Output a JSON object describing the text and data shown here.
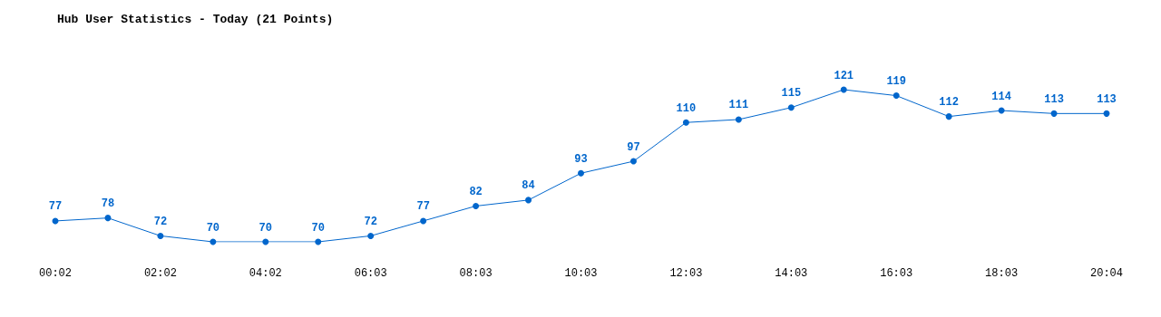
{
  "chart_data": {
    "type": "line",
    "title": "Hub User Statistics - Today (21 Points)",
    "categories": [
      "00:02",
      null,
      "02:02",
      null,
      "04:02",
      null,
      "06:03",
      null,
      "08:03",
      null,
      "10:03",
      null,
      "12:03",
      null,
      "14:03",
      null,
      "16:03",
      null,
      "18:03",
      null,
      "20:04"
    ],
    "series": [
      {
        "color": "#0066cc",
        "values": [
          77,
          78,
          72,
          70,
          70,
          70,
          72,
          77,
          82,
          84,
          93,
          97,
          110,
          111,
          115,
          121,
          119,
          112,
          114,
          113,
          113
        ]
      }
    ],
    "data_labels": true,
    "grid": false,
    "marker": "circle",
    "line_style": "solid",
    "tick_labels": "x"
  }
}
